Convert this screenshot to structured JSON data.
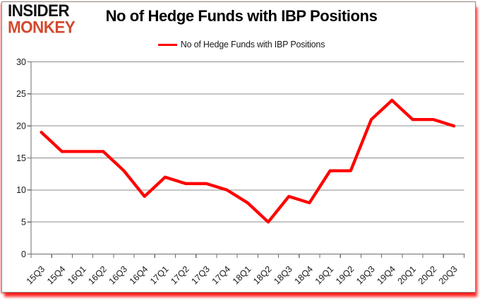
{
  "logo": {
    "line1": "INSIDER",
    "line2": "MONKEY",
    "line1_color": "#141414",
    "line2_color": "#d3492e"
  },
  "header": {
    "title": "No of Hedge Funds with IBP Positions"
  },
  "legend": {
    "label": "No of Hedge Funds with IBP Positions"
  },
  "colors": {
    "line": "#ff0000",
    "grid": "#8c8c8c",
    "axis": "#6e6e6e",
    "tick_text": "#1a1a1a",
    "frame_border": "#8f8f8f",
    "glow": "#ff0000",
    "background": "#ffffff"
  },
  "chart_data": {
    "type": "line",
    "title": "No of Hedge Funds with IBP Positions",
    "series": [
      {
        "name": "No of Hedge Funds with IBP Positions",
        "color": "#ff0000",
        "values": [
          19,
          16,
          16,
          16,
          13,
          9,
          12,
          11,
          11,
          10,
          8,
          5,
          9,
          8,
          13,
          13,
          21,
          24,
          21,
          21,
          20
        ]
      }
    ],
    "categories": [
      "15Q3",
      "15Q4",
      "16Q1",
      "16Q2",
      "16Q3",
      "16Q4",
      "17Q1",
      "17Q2",
      "17Q3",
      "17Q4",
      "18Q1",
      "18Q2",
      "18Q3",
      "18Q4",
      "19Q1",
      "19Q2",
      "19Q3",
      "19Q4",
      "20Q1",
      "20Q2",
      "20Q3"
    ],
    "xlabel": "",
    "ylabel": "",
    "ylim": [
      0,
      30
    ],
    "yticks": [
      0,
      5,
      10,
      15,
      20,
      25,
      30
    ],
    "grid": true,
    "legend_position": "top-center",
    "x_label_rotation_deg": 45
  }
}
